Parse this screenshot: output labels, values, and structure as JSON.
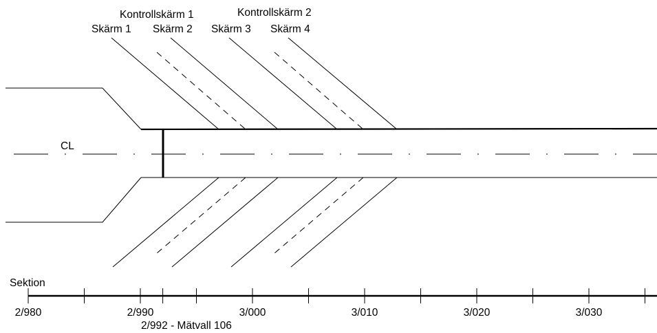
{
  "labels": {
    "skarm1": "Skärm 1",
    "kontrollskarm1": "Kontrollskärm 1",
    "skarm2": "Skärm 2",
    "skarm3": "Skärm 3",
    "kontrollskarm2": "Kontrollskärm 2",
    "skarm4": "Skärm 4",
    "centerline": "CL",
    "section": "Sektion",
    "measurement": "2/992 - Mätvall 106"
  },
  "section_ticks": [
    "2/980",
    "2/990",
    "3/000",
    "3/010",
    "3/020",
    "3/030"
  ]
}
